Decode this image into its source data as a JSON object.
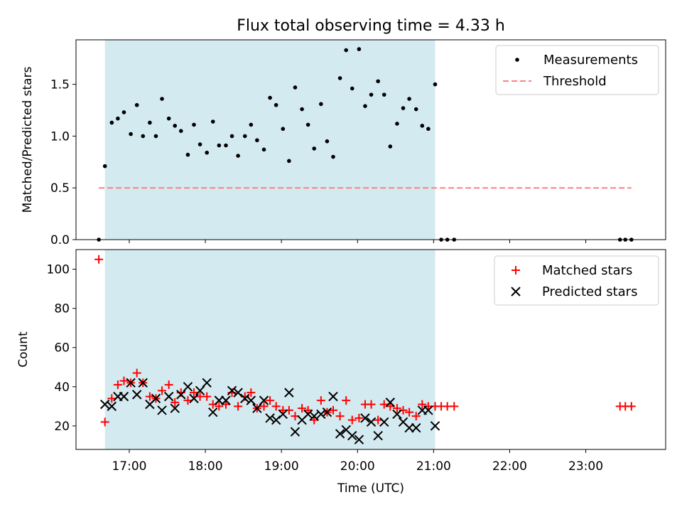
{
  "title": "Flux total observing time = 4.33 h",
  "xlabel": "Time (UTC)",
  "colors": {
    "shade": "#d3eaf0",
    "threshold": "#ff8080",
    "matched": "#ff0000",
    "predicted": "#000000",
    "measurement": "#000000"
  },
  "chart_data": [
    {
      "type": "scatter",
      "panel": "top",
      "ylabel": "Matched/Predicted stars",
      "x_domain_hours": [
        16.3,
        24.05
      ],
      "ylim": [
        0,
        1.93
      ],
      "yticks": [
        0.0,
        0.5,
        1.0,
        1.5
      ],
      "ytick_labels": [
        "0.0",
        "0.5",
        "1.0",
        "1.5"
      ],
      "observing_window_hours": [
        16.68,
        21.02
      ],
      "legend": {
        "position": "top-right",
        "entries": [
          "Measurements",
          "Threshold"
        ]
      },
      "threshold": {
        "name": "Threshold",
        "value": 0.5,
        "x_range_hours": [
          16.6,
          23.6
        ]
      },
      "series": [
        {
          "name": "Measurements",
          "marker": "dot",
          "x_hours": [
            16.6,
            16.68,
            16.77,
            16.85,
            16.93,
            17.02,
            17.1,
            17.18,
            17.27,
            17.35,
            17.43,
            17.52,
            17.6,
            17.68,
            17.77,
            17.85,
            17.93,
            18.02,
            18.1,
            18.18,
            18.27,
            18.35,
            18.43,
            18.52,
            18.6,
            18.68,
            18.77,
            18.85,
            18.93,
            19.02,
            19.1,
            19.18,
            19.27,
            19.35,
            19.43,
            19.52,
            19.6,
            19.68,
            19.77,
            19.85,
            19.93,
            20.02,
            20.1,
            20.18,
            20.27,
            20.35,
            20.43,
            20.52,
            20.6,
            20.68,
            20.77,
            20.85,
            20.93,
            21.02,
            21.1,
            21.18,
            21.27,
            23.45,
            23.52,
            23.6
          ],
          "y": [
            0.0,
            0.71,
            1.13,
            1.17,
            1.23,
            1.02,
            1.3,
            1.0,
            1.13,
            1.0,
            1.36,
            1.17,
            1.1,
            1.05,
            0.82,
            1.11,
            0.92,
            0.84,
            1.14,
            0.91,
            0.91,
            1.0,
            0.81,
            1.0,
            1.11,
            0.96,
            0.87,
            1.37,
            1.3,
            1.07,
            0.76,
            1.47,
            1.26,
            1.11,
            0.88,
            1.31,
            0.95,
            0.8,
            1.56,
            1.83,
            1.46,
            1.84,
            1.29,
            1.4,
            1.53,
            1.4,
            0.9,
            1.12,
            1.27,
            1.36,
            1.26,
            1.1,
            1.07,
            1.5,
            0.0,
            0.0,
            0.0,
            0.0,
            0.0,
            0.0
          ]
        }
      ]
    },
    {
      "type": "scatter",
      "panel": "bottom",
      "ylabel": "Count",
      "x_domain_hours": [
        16.3,
        24.05
      ],
      "ylim": [
        8,
        110
      ],
      "yticks": [
        20,
        40,
        60,
        80,
        100
      ],
      "ytick_labels": [
        "20",
        "40",
        "60",
        "80",
        "100"
      ],
      "xticks_hours": [
        17,
        18,
        19,
        20,
        21,
        22,
        23
      ],
      "xtick_labels": [
        "17:00",
        "18:00",
        "19:00",
        "20:00",
        "21:00",
        "22:00",
        "23:00"
      ],
      "observing_window_hours": [
        16.68,
        21.02
      ],
      "legend": {
        "position": "top-right",
        "entries": [
          "Matched stars",
          "Predicted stars"
        ]
      },
      "series": [
        {
          "name": "Matched stars",
          "marker": "plus",
          "x_hours": [
            16.6,
            16.68,
            16.77,
            16.85,
            16.93,
            17.02,
            17.1,
            17.18,
            17.27,
            17.35,
            17.43,
            17.52,
            17.6,
            17.68,
            17.77,
            17.85,
            17.93,
            18.02,
            18.1,
            18.18,
            18.27,
            18.35,
            18.43,
            18.52,
            18.6,
            18.68,
            18.77,
            18.85,
            18.93,
            19.02,
            19.1,
            19.18,
            19.27,
            19.35,
            19.43,
            19.52,
            19.6,
            19.68,
            19.77,
            19.85,
            19.93,
            20.02,
            20.1,
            20.18,
            20.27,
            20.35,
            20.43,
            20.52,
            20.6,
            20.68,
            20.77,
            20.85,
            20.93,
            21.02,
            21.1,
            21.18,
            21.27,
            23.45,
            23.52,
            23.6
          ],
          "y": [
            105,
            22,
            34,
            41,
            43,
            42,
            47,
            42,
            35,
            34,
            38,
            41,
            32,
            37,
            33,
            37,
            35,
            35,
            31,
            30,
            31,
            37,
            30,
            35,
            37,
            29,
            30,
            33,
            30,
            28,
            28,
            25,
            29,
            28,
            23,
            33,
            27,
            28,
            25,
            33,
            23,
            24,
            31,
            31,
            23,
            31,
            30,
            29,
            28,
            27,
            25,
            31,
            30,
            30,
            30,
            30,
            30,
            30,
            30,
            30
          ]
        },
        {
          "name": "Predicted stars",
          "marker": "x",
          "x_hours": [
            16.68,
            16.77,
            16.85,
            16.93,
            17.02,
            17.1,
            17.18,
            17.27,
            17.35,
            17.43,
            17.52,
            17.6,
            17.68,
            17.77,
            17.85,
            17.93,
            18.02,
            18.1,
            18.18,
            18.27,
            18.35,
            18.43,
            18.52,
            18.6,
            18.68,
            18.77,
            18.85,
            18.93,
            19.02,
            19.1,
            19.18,
            19.27,
            19.35,
            19.43,
            19.52,
            19.6,
            19.68,
            19.77,
            19.85,
            19.93,
            20.02,
            20.1,
            20.18,
            20.27,
            20.35,
            20.43,
            20.52,
            20.6,
            20.68,
            20.77,
            20.85,
            20.93,
            21.02
          ],
          "y": [
            31,
            30,
            35,
            35,
            42,
            36,
            42,
            31,
            34,
            28,
            35,
            29,
            36,
            40,
            34,
            38,
            42,
            27,
            33,
            33,
            38,
            37,
            34,
            33,
            29,
            33,
            24,
            23,
            26,
            37,
            17,
            23,
            26,
            25,
            26,
            27,
            35,
            16,
            18,
            15,
            13,
            24,
            22,
            15,
            22,
            32,
            26,
            22,
            19,
            19,
            28,
            28,
            20
          ]
        }
      ]
    }
  ]
}
